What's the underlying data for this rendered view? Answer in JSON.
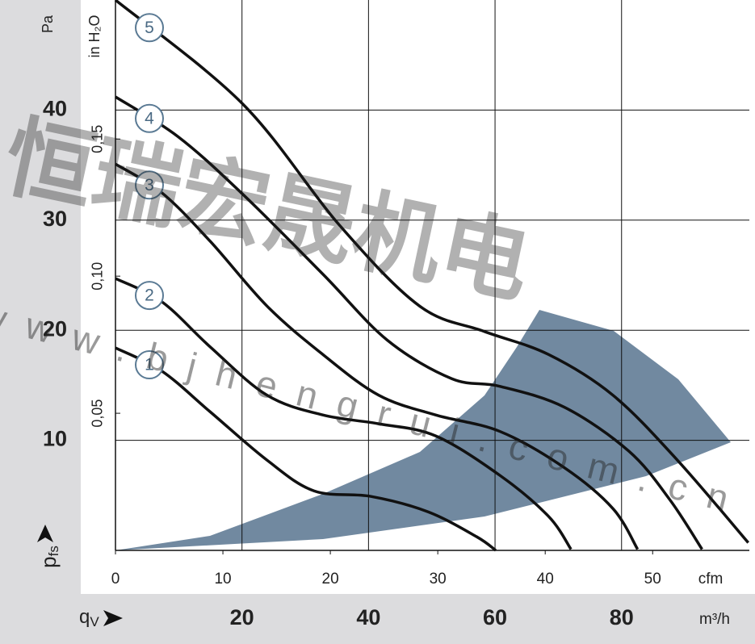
{
  "chart_data": {
    "type": "line",
    "x_label": "cfm",
    "x2_label": "m³/h",
    "y_label": "Pa",
    "y2_label": "in H₂O",
    "y_quantity": {
      "symbol": "p",
      "sub": "fs"
    },
    "x_quantity": {
      "symbol": "q",
      "sub": "V"
    },
    "watermark": {
      "text": "恒瑞宏晟机电",
      "url": "www.bjhengrui.com.cn"
    },
    "xlim": [
      0,
      59
    ],
    "xticks": [
      0,
      10,
      20,
      30,
      40,
      50
    ],
    "x2lim": [
      0,
      100.2
    ],
    "x2ticks": [
      20,
      40,
      60,
      80
    ],
    "ylim": [
      0,
      50
    ],
    "yticks": [
      10,
      20,
      30,
      40
    ],
    "y2lim": [
      0,
      0.2007
    ],
    "y2ticks": [
      {
        "value": 0.05,
        "label": "0,05"
      },
      {
        "value": 0.1,
        "label": "0,10"
      },
      {
        "value": 0.15,
        "label": "0,15"
      }
    ],
    "grid": true,
    "series": [
      {
        "name": "1",
        "color": "#111111",
        "x": [
          0,
          4.3,
          8.8,
          14.1,
          18.5,
          23.8,
          29.1,
          33.6,
          35.4
        ],
        "values": [
          18.4,
          16.3,
          12.6,
          8.2,
          5.4,
          4.9,
          3.5,
          1.25,
          0
        ]
      },
      {
        "name": "2",
        "color": "#111111",
        "x": [
          0,
          4.3,
          8.8,
          14.1,
          19.3,
          24.5,
          29.8,
          35.8,
          40.3,
          42.4
        ],
        "values": [
          24.7,
          22.6,
          18.5,
          14.1,
          12.3,
          11.5,
          10.4,
          6.8,
          3.1,
          0.1
        ]
      },
      {
        "name": "3",
        "color": "#111111",
        "x": [
          0,
          4.3,
          8.8,
          14.1,
          19.3,
          24.5,
          29.8,
          35.8,
          41.8,
          46.3,
          48.6
        ],
        "values": [
          35.1,
          32.5,
          28.1,
          22.2,
          17.8,
          14.1,
          12.3,
          10.8,
          7.5,
          3.8,
          0.1
        ]
      },
      {
        "name": "4",
        "color": "#111111",
        "x": [
          0,
          5.8,
          11.8,
          19.3,
          25.3,
          31.3,
          35.8,
          41.8,
          47.8,
          51.6,
          54.6
        ],
        "values": [
          41.2,
          37.6,
          32.4,
          25.1,
          19.1,
          15.6,
          14.9,
          13,
          9,
          4.6,
          0.1
        ]
      },
      {
        "name": "5",
        "color": "#111111",
        "x": [
          0,
          11.8,
          20.8,
          28.3,
          34.3,
          40.3,
          46.3,
          52.3,
          58.9
        ],
        "values": [
          50,
          40.6,
          29.6,
          22.2,
          19.9,
          17.8,
          14.1,
          8.2,
          0.7
        ]
      }
    ]
  }
}
